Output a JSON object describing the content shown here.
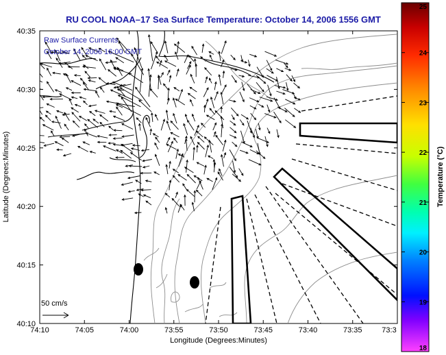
{
  "title": "RU COOL  NOAA–17  Sea Surface Temperature:  October 14, 2006 1556 GMT",
  "notes": {
    "line1": "Raw Surface Currents",
    "line2": "October 14, 2006 16:00 GMT"
  },
  "axes": {
    "xlabel": "Longitude (Degrees:Minutes)",
    "ylabel": "Latitude (Degrees:Minutes)",
    "xticks": [
      "74:10",
      "74:05",
      "74:00",
      "73:55",
      "73:50",
      "73:45",
      "73:40",
      "73:35",
      "73:3"
    ],
    "yticks": [
      "40:35",
      "40:30",
      "40:25",
      "40:20",
      "40:15",
      "40:10"
    ]
  },
  "scale_arrow": {
    "label": "50 cm/s"
  },
  "colorbar": {
    "label": "Temperature (°C)",
    "ticks": [
      "25",
      "24",
      "23",
      "22",
      "21",
      "20",
      "19",
      "18"
    ],
    "min": 18,
    "max": 25
  },
  "colors": {
    "title": "#1a1aa6",
    "land_outline": "#000000",
    "bathymetry": "#8c8c8c",
    "vectors": "#000000"
  }
}
